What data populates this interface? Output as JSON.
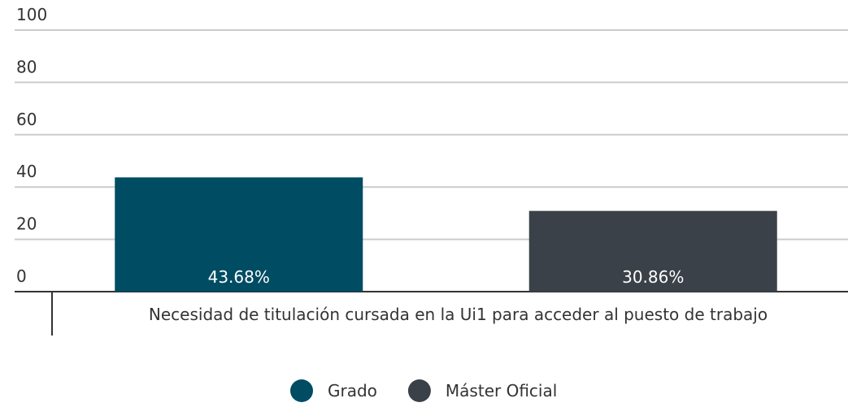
{
  "chart_data": {
    "type": "bar",
    "categories": [
      "Necesidad de titulación cursada en la Ui1 para acceder al puesto de trabajo"
    ],
    "series": [
      {
        "name": "Grado",
        "color": "#004c63",
        "values": [
          43.68
        ],
        "value_labels": [
          "43.68%"
        ]
      },
      {
        "name": "Máster Oficial",
        "color": "#3b4149",
        "values": [
          30.86
        ],
        "value_labels": [
          "30.86%"
        ]
      }
    ],
    "ylim": [
      0,
      100
    ],
    "yticks": [
      0,
      20,
      40,
      60,
      80,
      100
    ],
    "grid": true
  }
}
